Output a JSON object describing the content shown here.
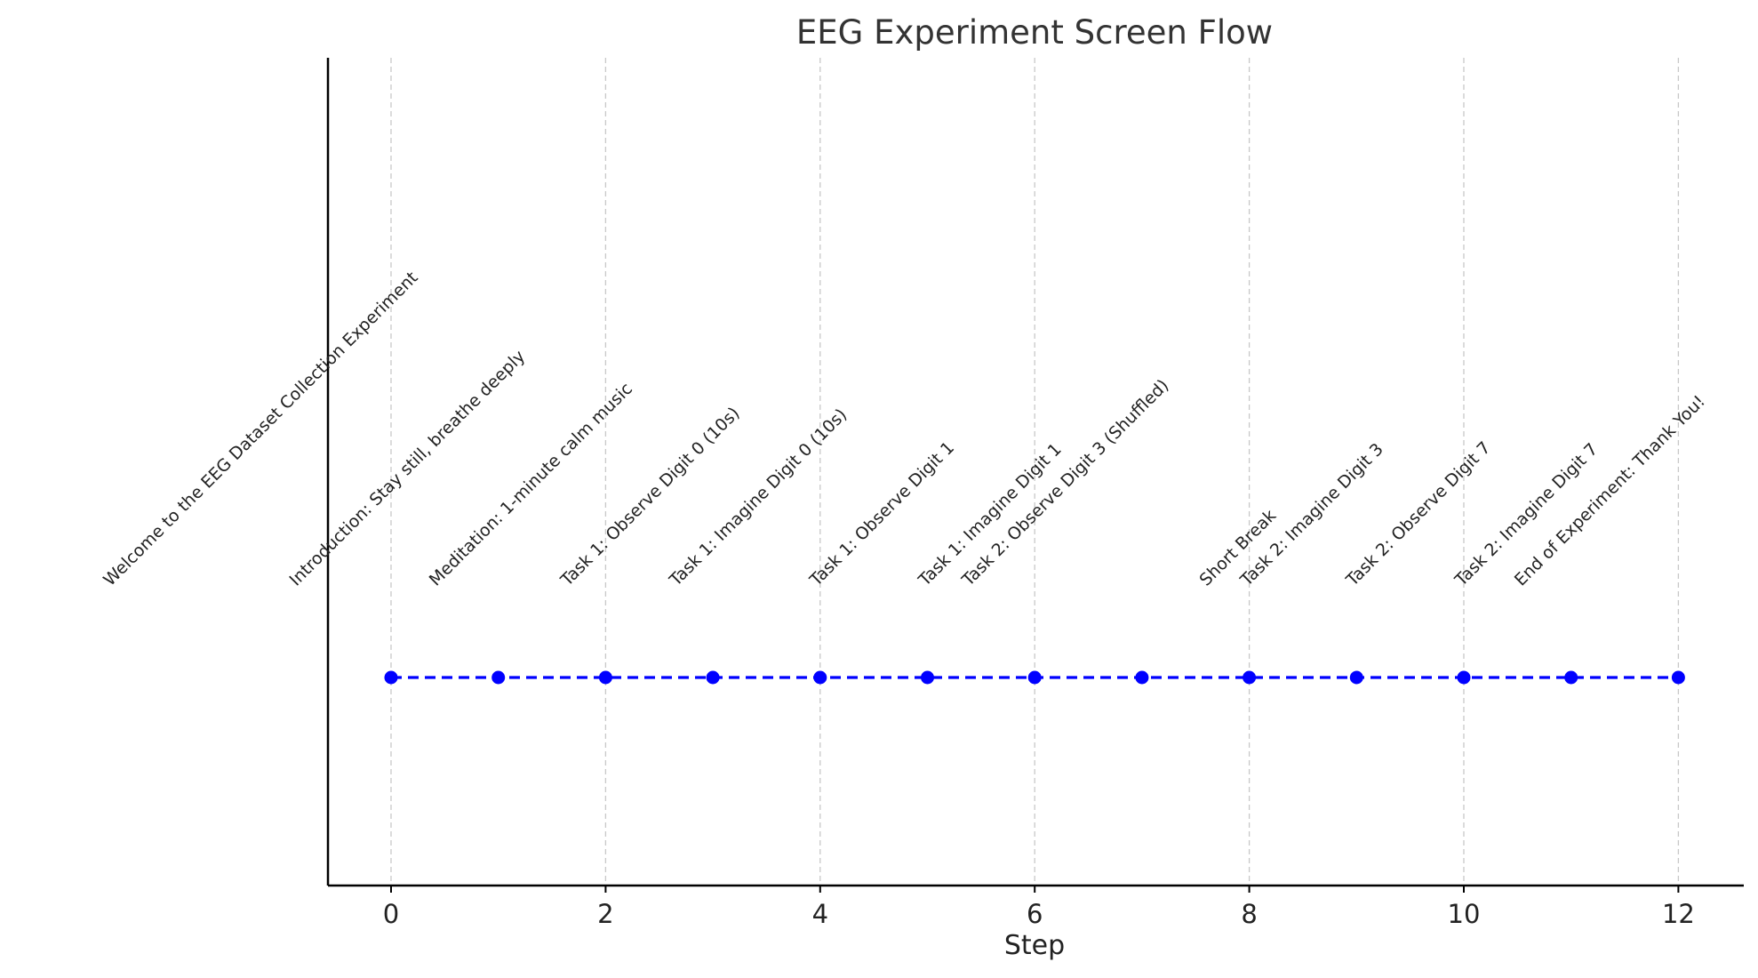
{
  "chart_data": {
    "type": "line",
    "title": "EEG Experiment Screen Flow",
    "xlabel": "Step",
    "ylabel": "",
    "x_ticks": [
      0,
      2,
      4,
      6,
      8,
      10,
      12
    ],
    "xlim": [
      -0.6,
      12.6
    ],
    "grid": "vertical dashed at x ticks",
    "series": [
      {
        "color": "#0000ff",
        "line_style": "dashed",
        "marker": "circle",
        "x": [
          0,
          1,
          2,
          3,
          4,
          5,
          6,
          7,
          8,
          9,
          10,
          11,
          12
        ],
        "y": [
          0,
          0,
          0,
          0,
          0,
          0,
          0,
          0,
          0,
          0,
          0,
          0,
          0
        ],
        "labels": [
          "Welcome to the EEG Dataset Collection Experiment",
          "Introduction: Stay still, breathe deeply",
          "Meditation: 1-minute calm music",
          "Task 1: Observe Digit 0 (10s)",
          "Task 1: Imagine Digit 0 (10s)",
          "Task 1: Observe Digit 1",
          "Task 1: Imagine Digit 1",
          "Task 2: Observe Digit 3 (Shuffled)",
          "Short Break",
          "Task 2: Imagine Digit 3",
          "Task 2: Observe Digit 7",
          "Task 2: Imagine Digit 7",
          "End of Experiment: Thank You!"
        ]
      }
    ]
  }
}
